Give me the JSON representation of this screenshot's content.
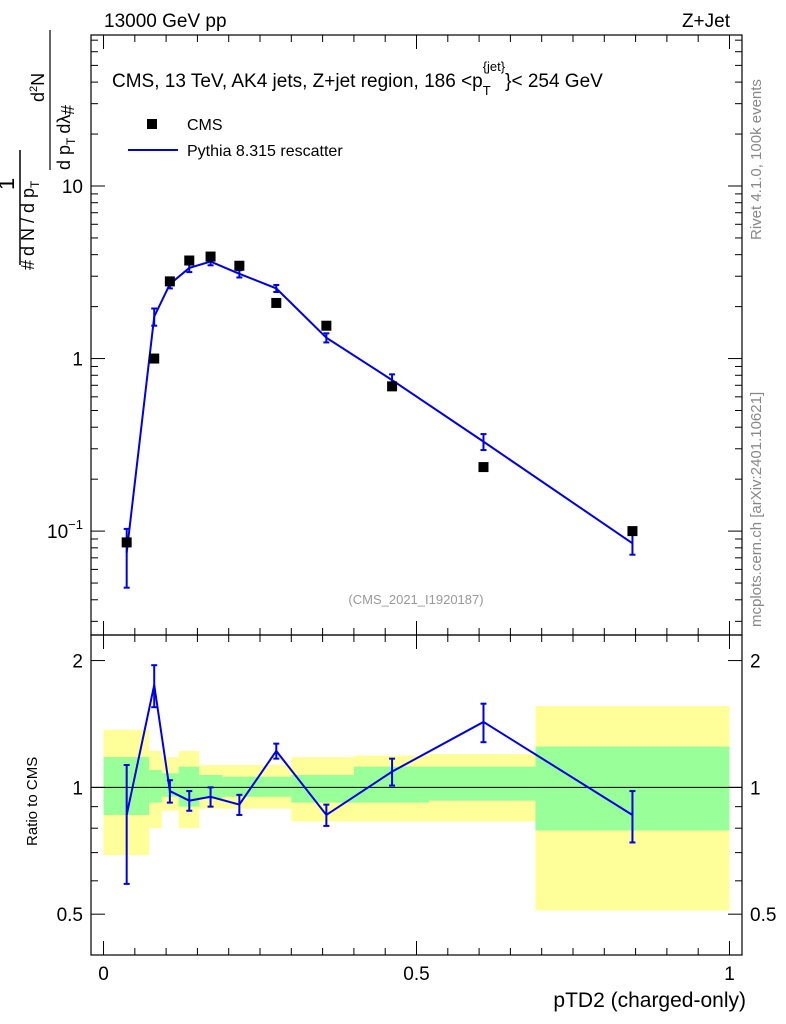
{
  "header": {
    "energy": "13000 GeV pp",
    "process": "Z+Jet"
  },
  "side_labels": {
    "rivet": "Rivet 4.1.0,  100k events",
    "site": "mcplots.cern.ch [arXiv:2401.10621]"
  },
  "colors": {
    "mc": "#0000e6",
    "data": "#000000",
    "band_1sigma": "#99ff99",
    "band_2sigma": "#ffff99"
  },
  "chart_data": {
    "type": "line",
    "title": "CMS, 13 TeV, AK4 jets, Z+jet region, 186 <p_T^{jet}< 254 GeV",
    "title_parts": {
      "prefix": "CMS, 13 TeV, AK4 jets, Z+jet region, 186 <p",
      "sub": "T",
      "sup": "{jet}",
      "suffix": "}< 254 GeV"
    },
    "analysis_id": "(CMS_2021_I1920187)",
    "xlabel": "pTD2 (charged-only)",
    "ylabel": "1/dN/dp_T d^2N/dp_T dλ",
    "ratio_ylabel": "Ratio to CMS",
    "xlim": [
      -0.02,
      1.02
    ],
    "ylim_main": [
      0.025,
      75
    ],
    "ylim_ratio": [
      0.4,
      2.3
    ],
    "x_ticks": [
      0,
      0.5,
      1
    ],
    "x_tick_labels": [
      "0",
      "0.5",
      "1"
    ],
    "main_y_ticks": [
      0.1,
      1,
      10
    ],
    "main_y_tick_labels": [
      {
        "base": "10",
        "exp": "−1"
      },
      {
        "base": "1",
        "exp": ""
      },
      {
        "base": "10",
        "exp": ""
      }
    ],
    "ratio_y_ticks": [
      0.5,
      1,
      2
    ],
    "ratio_y_tick_labels": [
      "0.5",
      "1",
      "2"
    ],
    "legend": [
      "CMS",
      "Pythia 8.315 rescatter"
    ],
    "legend_position": "top-left",
    "bin_edges": [
      0.0,
      0.073,
      0.093,
      0.12,
      0.153,
      0.19,
      0.25,
      0.3,
      0.4,
      0.52,
      0.69,
      1.0
    ],
    "x": [
      0.037,
      0.081,
      0.106,
      0.137,
      0.171,
      0.217,
      0.276,
      0.356,
      0.461,
      0.607,
      0.845
    ],
    "series": [
      {
        "name": "CMS",
        "values": [
          0.086,
          1.0,
          2.8,
          3.7,
          3.9,
          3.45,
          2.1,
          1.55,
          0.69,
          0.235,
          0.1
        ]
      },
      {
        "name": "Pythia 8.315 rescatter",
        "values": [
          0.075,
          1.75,
          2.7,
          3.35,
          3.65,
          3.1,
          2.55,
          1.32,
          0.75,
          0.33,
          0.085
        ],
        "errors": [
          0.028,
          0.2,
          0.15,
          0.18,
          0.18,
          0.15,
          0.12,
          0.08,
          0.06,
          0.035,
          0.012
        ]
      }
    ],
    "ratio": {
      "values": [
        0.86,
        1.75,
        0.98,
        0.93,
        0.95,
        0.91,
        1.22,
        0.86,
        1.09,
        1.43,
        0.86
      ],
      "errors": [
        0.27,
        0.2,
        0.06,
        0.05,
        0.05,
        0.05,
        0.05,
        0.05,
        0.08,
        0.15,
        0.12
      ],
      "band_1sigma": [
        [
          0.86,
          1.18
        ],
        [
          0.92,
          1.1
        ],
        [
          0.95,
          1.08
        ],
        [
          0.9,
          1.12
        ],
        [
          0.94,
          1.07
        ],
        [
          0.95,
          1.06
        ],
        [
          0.95,
          1.06
        ],
        [
          0.92,
          1.07
        ],
        [
          0.92,
          1.12
        ],
        [
          0.93,
          1.12
        ],
        [
          0.79,
          1.25
        ]
      ],
      "band_2sigma": [
        [
          0.69,
          1.37
        ],
        [
          0.8,
          1.22
        ],
        [
          0.88,
          1.18
        ],
        [
          0.8,
          1.22
        ],
        [
          0.89,
          1.13
        ],
        [
          0.89,
          1.13
        ],
        [
          0.89,
          1.13
        ],
        [
          0.83,
          1.18
        ],
        [
          0.83,
          1.19
        ],
        [
          0.83,
          1.2
        ],
        [
          0.51,
          1.56
        ]
      ]
    }
  }
}
